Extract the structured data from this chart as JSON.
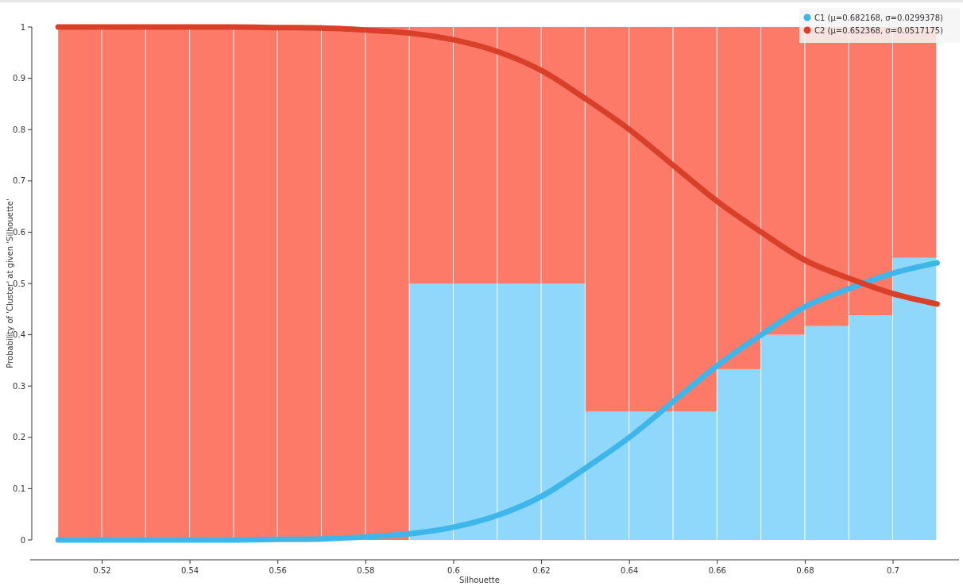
{
  "chart_data": {
    "type": "bar",
    "xlabel": "Silhouette",
    "ylabel": "Probability of 'Cluster' at given 'Silhouette'",
    "x": [
      0.515,
      0.525,
      0.535,
      0.545,
      0.555,
      0.565,
      0.575,
      0.585,
      0.595,
      0.605,
      0.615,
      0.625,
      0.635,
      0.645,
      0.655,
      0.665,
      0.675,
      0.685,
      0.695,
      0.705
    ],
    "stacked": true,
    "series": [
      {
        "color": "#8fd8fb",
        "values": [
          0,
          0,
          0,
          0,
          0,
          0,
          0,
          0,
          0.5,
          0.5,
          0.5,
          0.5,
          0.25,
          0.25,
          0.25,
          0.333,
          0.4,
          0.417,
          0.438,
          0.55
        ]
      },
      {
        "color": "#fe7a68",
        "values": [
          1,
          1,
          1,
          1,
          1,
          1,
          1,
          1,
          0.5,
          0.5,
          0.5,
          0.5,
          0.75,
          0.75,
          0.75,
          0.667,
          0.6,
          0.583,
          0.562,
          0.45
        ]
      },
      {
        "type": "line",
        "name": "C1 (μ=0.682168, σ=0.0299378)",
        "color": "#3fb6ea",
        "x": [
          0.51,
          0.53,
          0.55,
          0.56,
          0.57,
          0.58,
          0.59,
          0.6,
          0.61,
          0.62,
          0.63,
          0.64,
          0.65,
          0.66,
          0.67,
          0.68,
          0.69,
          0.7,
          0.71
        ],
        "values": [
          0,
          0,
          0,
          0.001,
          0.002,
          0.006,
          0.012,
          0.025,
          0.048,
          0.085,
          0.14,
          0.2,
          0.27,
          0.34,
          0.4,
          0.455,
          0.49,
          0.52,
          0.54
        ]
      },
      {
        "type": "line",
        "name": "C2 (μ=0.652368, σ=0.0517175)",
        "color": "#d9402a",
        "x": [
          0.51,
          0.53,
          0.55,
          0.56,
          0.57,
          0.58,
          0.59,
          0.6,
          0.61,
          0.62,
          0.63,
          0.64,
          0.65,
          0.66,
          0.67,
          0.68,
          0.69,
          0.7,
          0.71
        ],
        "values": [
          1,
          1,
          1,
          0.999,
          0.998,
          0.994,
          0.988,
          0.975,
          0.952,
          0.915,
          0.86,
          0.8,
          0.73,
          0.66,
          0.6,
          0.545,
          0.51,
          0.48,
          0.46
        ]
      }
    ],
    "xlim": [
      0.504,
      0.715
    ],
    "xticks": [
      0.52,
      0.54,
      0.56,
      0.58,
      0.6,
      0.62,
      0.64,
      0.66,
      0.68,
      0.7
    ],
    "ylim": [
      0,
      1
    ],
    "yticks": [
      0,
      0.1,
      0.2,
      0.3,
      0.4,
      0.5,
      0.6,
      0.7,
      0.8,
      0.9,
      1
    ],
    "legend": "top right",
    "marker": "none",
    "line_style": "solid"
  }
}
